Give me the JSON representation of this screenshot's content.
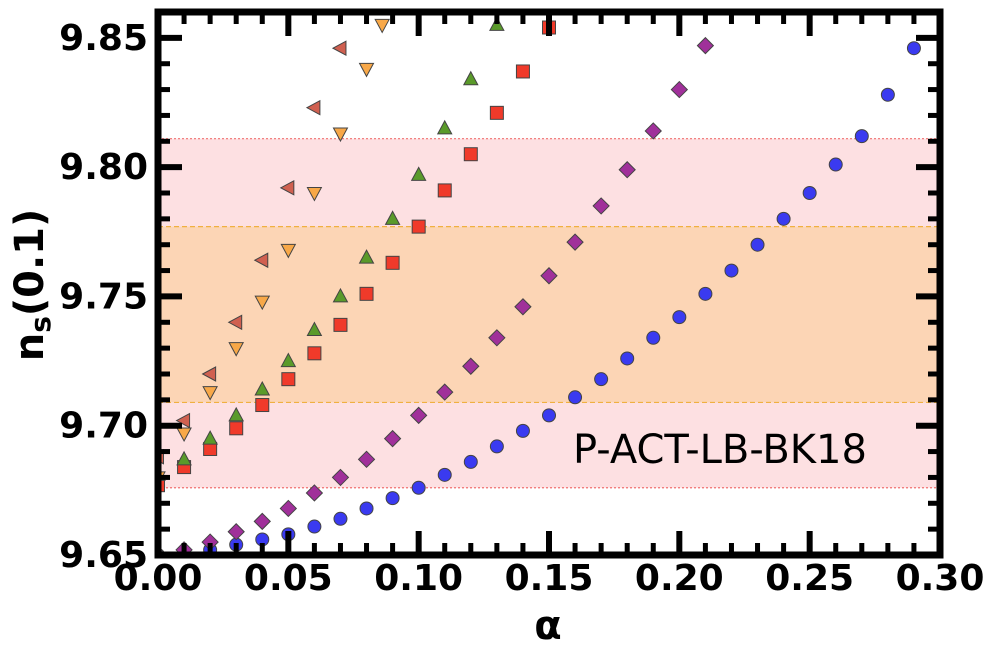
{
  "chart_data": {
    "type": "scatter",
    "xlabel": "α",
    "ylabel": [
      "n",
      "s",
      "(0.1)"
    ],
    "annotation": "P-ACT-LB-BK18",
    "xlim": [
      0,
      0.3
    ],
    "ylim": [
      9.65,
      9.86
    ],
    "xticks": [
      {
        "value": 0,
        "label": "0.00"
      },
      0.05,
      {
        "value": 0.1,
        "label": "0.10"
      },
      0.15,
      {
        "value": 0.2,
        "label": "0.20"
      },
      0.25,
      {
        "value": 0.3,
        "label": "0.30"
      }
    ],
    "yticks": [
      9.65,
      {
        "value": 9.7,
        "label": "9.70"
      },
      9.75,
      {
        "value": 9.8,
        "label": "9.80"
      },
      9.85
    ],
    "bands": [
      {
        "range": [
          9.676,
          9.811
        ],
        "color": "#fde0e2",
        "edge": "#f07070"
      },
      {
        "range": [
          9.709,
          9.777
        ],
        "color": "#fcd5b5",
        "edge": "#f0b040"
      }
    ],
    "series": [
      {
        "marker": "circle",
        "color": "#3a3af0",
        "x": [
          0,
          0.01,
          0.02,
          0.03,
          0.04,
          0.05,
          0.06,
          0.07,
          0.08,
          0.09,
          0.1,
          0.11,
          0.12,
          0.13,
          0.14,
          0.15,
          0.16,
          0.17,
          0.18,
          0.19,
          0.2,
          0.21,
          0.22,
          0.23,
          0.24,
          0.25,
          0.26,
          0.27,
          0.28,
          0.29
        ],
        "values": [
          9.65,
          9.651,
          9.652,
          9.654,
          9.656,
          9.658,
          9.661,
          9.664,
          9.668,
          9.672,
          9.676,
          9.681,
          9.686,
          9.692,
          9.698,
          9.704,
          9.711,
          9.718,
          9.726,
          9.734,
          9.742,
          9.751,
          9.76,
          9.77,
          9.78,
          9.79,
          9.801,
          9.812,
          9.828,
          9.846
        ]
      },
      {
        "marker": "diamond",
        "color": "#a0309a",
        "x": [
          0,
          0.01,
          0.02,
          0.03,
          0.04,
          0.05,
          0.06,
          0.07,
          0.08,
          0.09,
          0.1,
          0.11,
          0.12,
          0.13,
          0.14,
          0.15,
          0.16,
          0.17,
          0.18,
          0.19,
          0.2,
          0.21
        ],
        "values": [
          9.65,
          9.652,
          9.655,
          9.659,
          9.663,
          9.668,
          9.674,
          9.68,
          9.687,
          9.695,
          9.704,
          9.713,
          9.723,
          9.734,
          9.746,
          9.758,
          9.771,
          9.785,
          9.799,
          9.814,
          9.83,
          9.847
        ]
      },
      {
        "marker": "square",
        "color": "#f03a2a",
        "x": [
          0,
          0.01,
          0.02,
          0.03,
          0.04,
          0.05,
          0.06,
          0.07,
          0.08,
          0.09,
          0.1,
          0.11,
          0.12,
          0.13,
          0.14,
          0.15
        ],
        "values": [
          9.677,
          9.684,
          9.691,
          9.699,
          9.708,
          9.718,
          9.728,
          9.739,
          9.751,
          9.763,
          9.777,
          9.791,
          9.805,
          9.821,
          9.837,
          9.854
        ]
      },
      {
        "marker": "up",
        "color": "#5a9a2a",
        "x": [
          0,
          0.01,
          0.02,
          0.03,
          0.04,
          0.05,
          0.06,
          0.07,
          0.08,
          0.09,
          0.1,
          0.11,
          0.12,
          0.13
        ],
        "values": [
          9.681,
          9.687,
          9.695,
          9.704,
          9.714,
          9.725,
          9.737,
          9.75,
          9.765,
          9.78,
          9.797,
          9.815,
          9.834,
          9.855
        ]
      },
      {
        "marker": "down",
        "color": "#f8a848",
        "x": [
          0,
          0.01,
          0.02,
          0.03,
          0.04,
          0.05,
          0.06,
          0.07,
          0.08,
          0.086
        ],
        "values": [
          9.68,
          9.697,
          9.713,
          9.73,
          9.748,
          9.768,
          9.79,
          9.813,
          9.838,
          9.855
        ]
      },
      {
        "marker": "left",
        "color": "#d06050",
        "x": [
          0,
          0.01,
          0.02,
          0.03,
          0.04,
          0.05,
          0.06,
          0.07
        ],
        "values": [
          9.688,
          9.702,
          9.72,
          9.74,
          9.764,
          9.792,
          9.823,
          9.846
        ]
      }
    ]
  }
}
